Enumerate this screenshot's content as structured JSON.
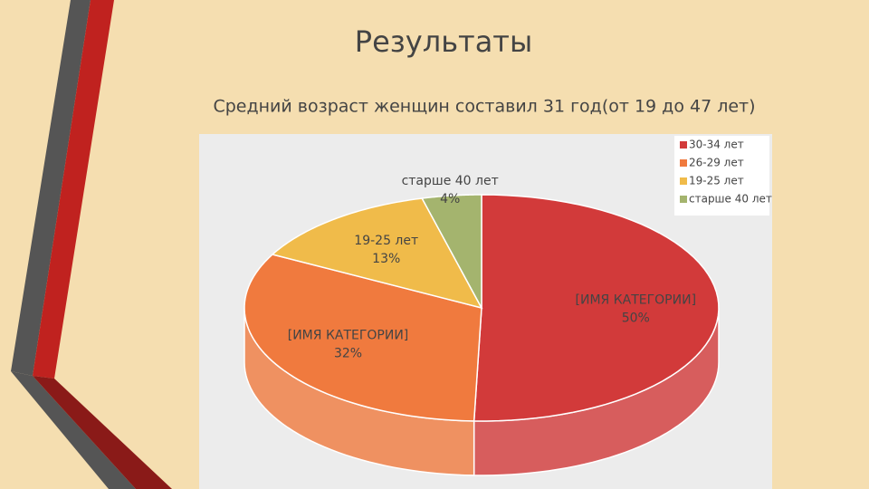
{
  "chart_data": {
    "type": "pie3d",
    "title": "Результаты",
    "subtitle": "Средний возраст женщин составил 31 год(от 19 до 47 лет)",
    "categories": [
      "30-34 лет",
      "26-29 лет",
      "19-25 лет",
      "старше 40 лет"
    ],
    "values": [
      50,
      32,
      13,
      4
    ],
    "label_names": [
      "[ИМЯ КАТЕГОРИИ]",
      "[ИМЯ КАТЕГОРИИ]",
      "19-25 лет",
      "старше 40 лет"
    ],
    "value_labels": [
      "50%",
      "32%",
      "13%",
      "4%"
    ],
    "colors": [
      "#d23a3a",
      "#f07a3e",
      "#f0bb4a",
      "#a4b46e"
    ],
    "legend": "top-right"
  }
}
